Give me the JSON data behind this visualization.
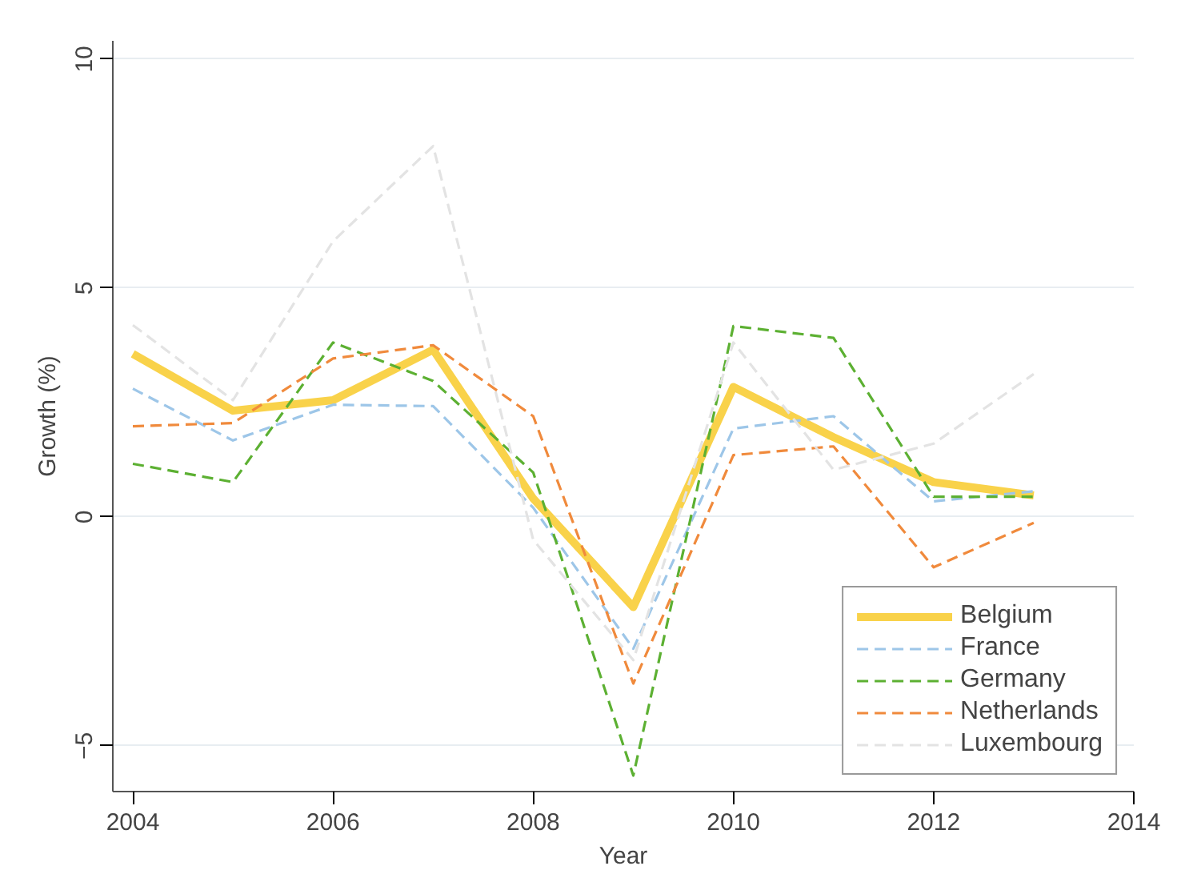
{
  "chart_data": {
    "type": "line",
    "xlabel": "Year",
    "ylabel": "Growth (%)",
    "x": [
      2004,
      2005,
      2006,
      2007,
      2008,
      2009,
      2010,
      2011,
      2012,
      2013
    ],
    "series": [
      {
        "name": "Belgium",
        "color": "#f9d24a",
        "line_style": "solid",
        "values": [
          3.56,
          2.32,
          2.55,
          3.65,
          0.4,
          -1.97,
          2.84,
          1.74,
          0.76,
          0.47
        ]
      },
      {
        "name": "France",
        "color": "#9dc6e8",
        "line_style": "dashed",
        "values": [
          2.8,
          1.67,
          2.45,
          2.42,
          0.2,
          -2.88,
          1.93,
          2.2,
          0.34,
          0.56
        ]
      },
      {
        "name": "Germany",
        "color": "#5cb032",
        "line_style": "dashed",
        "values": [
          1.16,
          0.76,
          3.81,
          2.97,
          0.97,
          -5.65,
          4.17,
          3.91,
          0.44,
          0.44
        ]
      },
      {
        "name": "Netherlands",
        "color": "#f08a3c",
        "line_style": "dashed",
        "values": [
          1.98,
          2.05,
          3.46,
          3.75,
          2.2,
          -3.64,
          1.35,
          1.54,
          -1.1,
          -0.13
        ]
      },
      {
        "name": "Luxembourg",
        "color": "#e3e3e3",
        "line_style": "dashed",
        "values": [
          4.19,
          2.55,
          6.02,
          8.1,
          -0.5,
          -3.13,
          3.81,
          1.03,
          1.6,
          3.12
        ]
      }
    ],
    "xlim": [
      2003.8,
      2014
    ],
    "xticks": [
      2004,
      2006,
      2008,
      2010,
      2012,
      2014
    ],
    "ylim": [
      -6,
      10.4
    ],
    "yticks": [
      -5,
      0,
      5,
      10
    ],
    "grid": "y",
    "legend": "bottom right",
    "marker": "none"
  }
}
